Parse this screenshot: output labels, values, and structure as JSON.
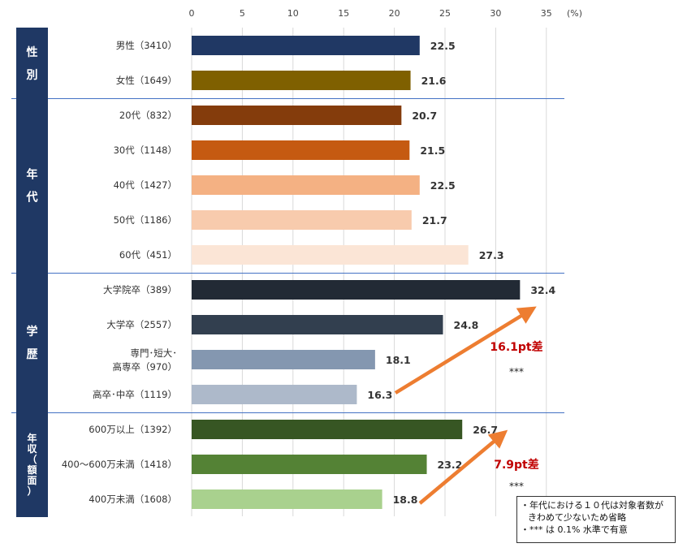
{
  "unit_label": "(%)",
  "chart_data": {
    "type": "bar",
    "orientation": "horizontal",
    "xlim": [
      0,
      35
    ],
    "x_ticks": [
      0,
      5,
      10,
      15,
      20,
      25,
      30,
      35
    ],
    "grid": true,
    "groups": [
      {
        "label": "性別",
        "chars": [
          "性",
          "別"
        ],
        "rows": [
          {
            "label": "男性（3410）",
            "value": 22.5,
            "color": "#203864"
          },
          {
            "label": "女性（1649）",
            "value": 21.6,
            "color": "#7F6000"
          }
        ]
      },
      {
        "label": "年代",
        "chars": [
          "年",
          "代"
        ],
        "rows": [
          {
            "label": "20代（832）",
            "value": 20.7,
            "color": "#843C0C"
          },
          {
            "label": "30代（1148）",
            "value": 21.5,
            "color": "#C55A11"
          },
          {
            "label": "40代（1427）",
            "value": 22.5,
            "color": "#F4B183"
          },
          {
            "label": "50代（1186）",
            "value": 21.7,
            "color": "#F8CBAD"
          },
          {
            "label": "60代（451）",
            "value": 27.3,
            "color": "#FBE5D6"
          }
        ]
      },
      {
        "label": "学歴",
        "chars": [
          "学",
          "歴"
        ],
        "rows": [
          {
            "label": "大学院卒（389）",
            "value": 32.4,
            "color": "#222A35"
          },
          {
            "label": "大学卒（2557）",
            "value": 24.8,
            "color": "#323F4F"
          },
          {
            "label": "専門･短大･ 高専卒（970）",
            "lines": [
              "専門･短大･",
              "高専卒（970）"
            ],
            "value": 18.1,
            "color": "#8497B0"
          },
          {
            "label": "高卒･中卒（1119）",
            "value": 16.3,
            "color": "#ADB9CA"
          }
        ]
      },
      {
        "label": "年収（額面）",
        "chars": [
          "年",
          "収",
          "（",
          "額",
          "面",
          "）"
        ],
        "rows": [
          {
            "label": "600万以上（1392）",
            "value": 26.7,
            "color": "#375623"
          },
          {
            "label": "400～600万未満（1418）",
            "value": 23.2,
            "color": "#548235"
          },
          {
            "label": "400万未満（1608）",
            "value": 18.8,
            "color": "#A9D18E"
          }
        ]
      }
    ],
    "annotations": [
      {
        "text": "16.1pt差",
        "sig": "***",
        "from_value": 16.3,
        "to_value": 32.4
      },
      {
        "text": "7.9pt差",
        "sig": "***",
        "from_value": 18.8,
        "to_value": 26.7
      }
    ]
  },
  "notes": {
    "line1": "・年代における１０代は対象者数が",
    "line2": "きわめて少ないため省略",
    "line3": "・*** は 0.1% 水準で有意"
  },
  "colors": {
    "group_box": "#1F3864",
    "separator": "#4472C4",
    "grid": "#D9D9D9",
    "annotation_text": "#C00000",
    "arrow": "#ED7D31"
  }
}
